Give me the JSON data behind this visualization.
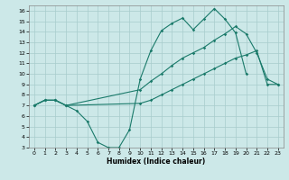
{
  "xlabel": "Humidex (Indice chaleur)",
  "bg_color": "#cce8e8",
  "line_color": "#1a7a6a",
  "grid_color": "#a8cccc",
  "xlim": [
    -0.5,
    23.5
  ],
  "ylim": [
    3,
    16.5
  ],
  "xticks": [
    0,
    1,
    2,
    3,
    4,
    5,
    6,
    7,
    8,
    9,
    10,
    11,
    12,
    13,
    14,
    15,
    16,
    17,
    18,
    19,
    20,
    21,
    22,
    23
  ],
  "yticks": [
    3,
    4,
    5,
    6,
    7,
    8,
    9,
    10,
    11,
    12,
    13,
    14,
    15,
    16
  ],
  "line1_x": [
    0,
    1,
    2,
    3,
    4,
    5,
    6,
    7,
    8,
    9,
    10,
    11,
    12,
    13,
    14,
    15,
    16,
    17,
    18,
    19,
    20
  ],
  "line1_y": [
    7.0,
    7.5,
    7.5,
    7.0,
    6.5,
    5.5,
    3.5,
    3.0,
    3.0,
    4.7,
    9.5,
    12.2,
    14.1,
    14.8,
    15.3,
    14.2,
    15.2,
    16.2,
    15.2,
    13.9,
    10.0
  ],
  "line2_x": [
    0,
    1,
    2,
    3,
    10,
    11,
    12,
    13,
    14,
    15,
    16,
    17,
    18,
    19,
    20,
    21,
    22,
    23
  ],
  "line2_y": [
    7.0,
    7.5,
    7.5,
    7.0,
    8.5,
    9.3,
    10.0,
    10.8,
    11.5,
    12.0,
    12.5,
    13.2,
    13.8,
    14.5,
    13.8,
    12.0,
    9.5,
    9.0
  ],
  "line3_x": [
    0,
    1,
    2,
    3,
    10,
    11,
    12,
    13,
    14,
    15,
    16,
    17,
    18,
    19,
    20,
    21,
    22,
    23
  ],
  "line3_y": [
    7.0,
    7.5,
    7.5,
    7.0,
    7.2,
    7.5,
    8.0,
    8.5,
    9.0,
    9.5,
    10.0,
    10.5,
    11.0,
    11.5,
    11.8,
    12.2,
    9.0,
    9.0
  ]
}
